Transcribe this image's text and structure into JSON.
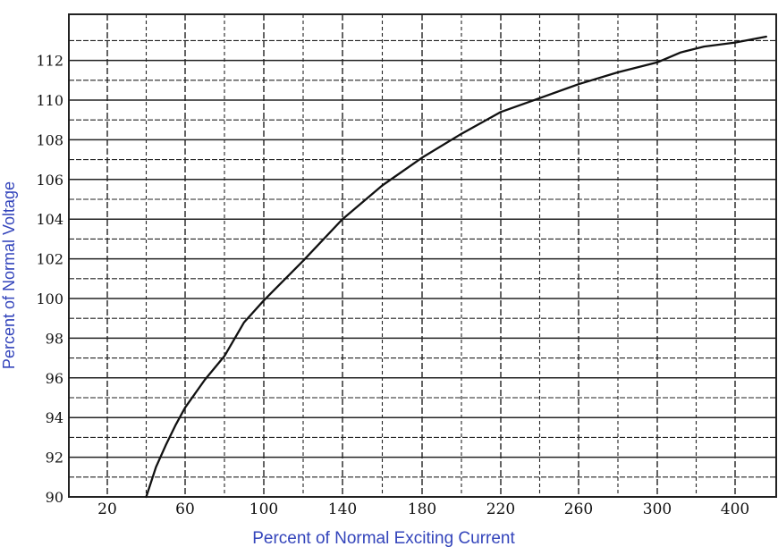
{
  "chart_data": {
    "type": "line",
    "title": "",
    "xlabel": "Percent of Normal Exciting Current",
    "ylabel": "Percent of Normal Voltage",
    "x_ticks": [
      "20",
      "60",
      "100",
      "140",
      "180",
      "220",
      "260",
      "300",
      "400"
    ],
    "y_ticks": [
      "90",
      "92",
      "94",
      "96",
      "98",
      "100",
      "102",
      "104",
      "106",
      "108",
      "110",
      "112"
    ],
    "ylim": [
      90,
      113.2
    ],
    "grid": true,
    "series": [
      {
        "x": [
          40,
          45,
          50,
          55,
          60,
          70,
          80,
          90,
          100,
          120,
          140,
          160,
          180,
          200,
          220,
          240,
          260,
          280,
          300,
          330,
          360,
          400,
          440
        ],
        "y": [
          90,
          91.5,
          92.6,
          93.6,
          94.5,
          95.9,
          97.1,
          98.8,
          99.9,
          101.9,
          104.0,
          105.7,
          107.1,
          108.3,
          109.4,
          110.1,
          110.8,
          111.4,
          111.9,
          112.4,
          112.7,
          112.9,
          113.2
        ]
      }
    ],
    "colors": {
      "axis_labels": "#3344bb",
      "line": "#111111",
      "grid": "#222222"
    }
  }
}
